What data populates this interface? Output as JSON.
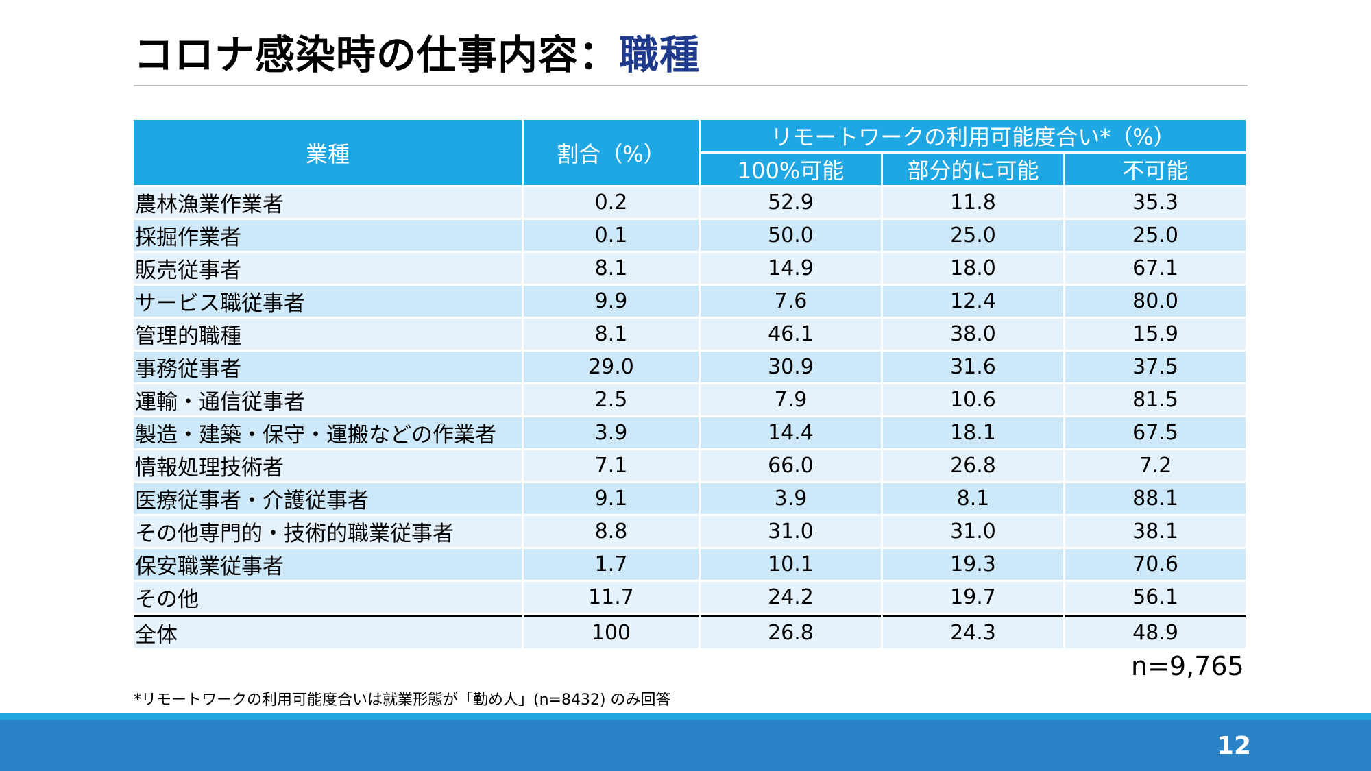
{
  "title": {
    "main": "コロナ感染時の仕事内容：",
    "accent": "職種"
  },
  "table": {
    "header": {
      "occupation": "業種",
      "ratio": "割合（%）",
      "remote_group": "リモートワークの利用可能度合い*（%）",
      "sub": [
        "100%可能",
        "部分的に可能",
        "不可能"
      ]
    },
    "rows": [
      {
        "name": "農林漁業作業者",
        "ratio": "0.2",
        "full": "52.9",
        "partial": "11.8",
        "none": "35.3"
      },
      {
        "name": "採掘作業者",
        "ratio": "0.1",
        "full": "50.0",
        "partial": "25.0",
        "none": "25.0"
      },
      {
        "name": "販売従事者",
        "ratio": "8.1",
        "full": "14.9",
        "partial": "18.0",
        "none": "67.1"
      },
      {
        "name": "サービス職従事者",
        "ratio": "9.9",
        "full": "7.6",
        "partial": "12.4",
        "none": "80.0"
      },
      {
        "name": "管理的職種",
        "ratio": "8.1",
        "full": "46.1",
        "partial": "38.0",
        "none": "15.9"
      },
      {
        "name": "事務従事者",
        "ratio": "29.0",
        "full": "30.9",
        "partial": "31.6",
        "none": "37.5"
      },
      {
        "name": "運輸・通信従事者",
        "ratio": "2.5",
        "full": "7.9",
        "partial": "10.6",
        "none": "81.5"
      },
      {
        "name": "製造・建築・保守・運搬などの作業者",
        "ratio": "3.9",
        "full": "14.4",
        "partial": "18.1",
        "none": "67.5"
      },
      {
        "name": "情報処理技術者",
        "ratio": "7.1",
        "full": "66.0",
        "partial": "26.8",
        "none": "7.2"
      },
      {
        "name": "医療従事者・介護従事者",
        "ratio": "9.1",
        "full": "3.9",
        "partial": "8.1",
        "none": "88.1"
      },
      {
        "name": "その他専門的・技術的職業従事者",
        "ratio": "8.8",
        "full": "31.0",
        "partial": "31.0",
        "none": "38.1"
      },
      {
        "name": "保安職業従事者",
        "ratio": "1.7",
        "full": "10.1",
        "partial": "19.3",
        "none": "70.6"
      },
      {
        "name": "その他",
        "ratio": "11.7",
        "full": "24.2",
        "partial": "19.7",
        "none": "56.1"
      }
    ],
    "total": {
      "name": "全体",
      "ratio": "100",
      "full": "26.8",
      "partial": "24.3",
      "none": "48.9"
    }
  },
  "sample_size": "n=9,765",
  "footnote": "*リモートワークの利用可能度合いは就業形態が「勤め人」(n=8432) のみ回答",
  "page_number": "12",
  "colors": {
    "header_bg": "#1ea7e2",
    "row_light": "#e5f1fb",
    "row_dark": "#cde8f8",
    "title_accent": "#1f3a8a",
    "footer_bar": "#2a82c7"
  }
}
